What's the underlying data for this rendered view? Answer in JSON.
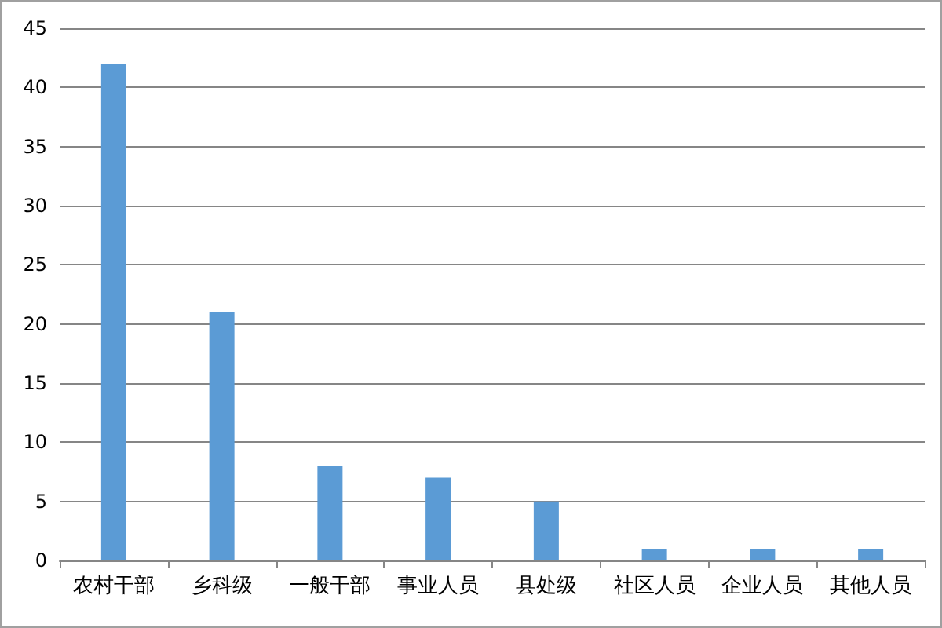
{
  "chart_data": {
    "type": "bar",
    "categories": [
      "农村干部",
      "乡科级",
      "一般干部",
      "事业人员",
      "县处级",
      "社区人员",
      "企业人员",
      "其他人员"
    ],
    "values": [
      42,
      21,
      8,
      7,
      5,
      1,
      1,
      1
    ],
    "color": "#5b9bd5",
    "ylim": [
      0,
      45
    ],
    "yticks": [
      0,
      5,
      10,
      15,
      20,
      25,
      30,
      35,
      40,
      45
    ],
    "grid": "y"
  }
}
